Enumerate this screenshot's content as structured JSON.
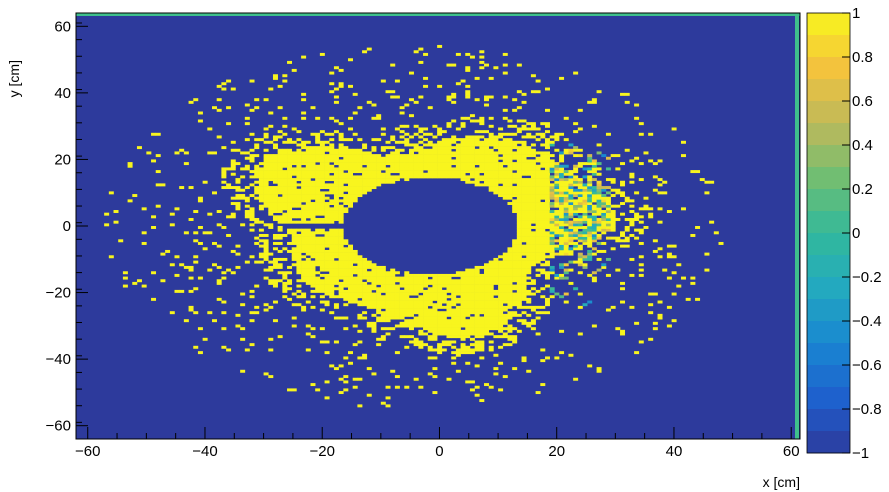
{
  "chart_data": {
    "type": "heatmap",
    "title": "",
    "xlabel": "x [cm]",
    "ylabel": "y [cm]",
    "xlim": [
      -62,
      61.5
    ],
    "ylim": [
      -64,
      64
    ],
    "x_ticks": [
      -60,
      -40,
      -20,
      0,
      20,
      40,
      60
    ],
    "y_ticks": [
      -60,
      -40,
      -20,
      0,
      20,
      40,
      60
    ],
    "x_tick_labels": [
      "−60",
      "−40",
      "−20",
      "0",
      "20",
      "40",
      "60"
    ],
    "y_tick_labels": [
      "−60",
      "−40",
      "−20",
      "0",
      "20",
      "40",
      "60"
    ],
    "z_range": [
      -1,
      1
    ],
    "z_ticks": [
      1,
      0.8,
      0.6,
      0.4,
      0.2,
      0,
      -0.2,
      -0.4,
      -0.6,
      -0.8,
      -1
    ],
    "z_tick_labels": [
      "1",
      "0.8",
      "0.6",
      "0.4",
      "0.2",
      "0",
      "−0.2",
      "−0.4",
      "−0.6",
      "−0.8",
      "−1"
    ],
    "background_value": -1,
    "features": {
      "annulus": {
        "center": [
          -1.5,
          0
        ],
        "inner_radius": [
          15,
          14.5
        ],
        "outer_radius_approx": 28,
        "value": 1
      },
      "gap_strip": {
        "x_range": [
          -27,
          -15
        ],
        "y": 0,
        "value": -1
      },
      "scatter_halo": {
        "x_range": [
          -57,
          49
        ],
        "y_range": [
          -52,
          58
        ],
        "value": 1
      },
      "mixed_band": {
        "x_range": [
          19,
          29
        ],
        "y_range": [
          -27,
          25
        ],
        "value_range": [
          -0.5,
          1
        ]
      }
    },
    "grid": false,
    "colormap": "parula-like (blue to yellow)"
  },
  "colors": {
    "background_bin": "#2d3a9c",
    "high": "#f7f41f",
    "top_strip": "#3fbf8c"
  }
}
